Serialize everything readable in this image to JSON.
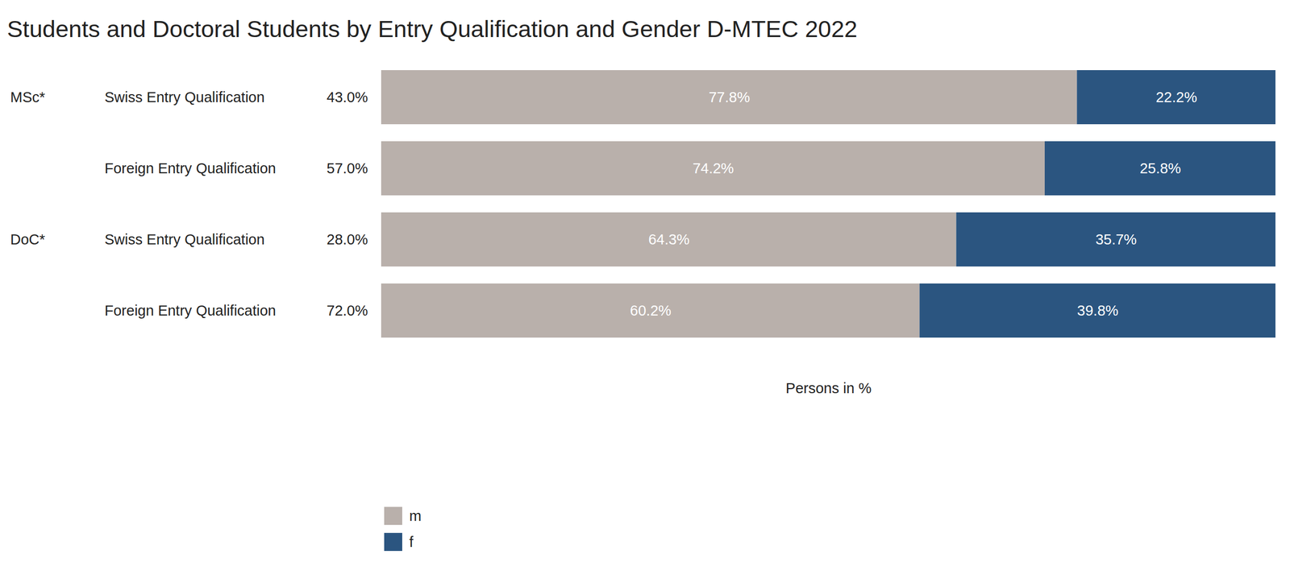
{
  "chart_data": {
    "type": "bar",
    "title": "Students and Doctoral Students by Entry Qualification and Gender D-MTEC 2022",
    "orientation": "horizontal",
    "stacked": true,
    "data_labels": true,
    "tick_labels": false,
    "legend": "bottom-left",
    "x_label": "Persons in %",
    "categories": [
      "Swiss Entry Qualification",
      "Foreign Entry Qualification",
      "Swiss Entry Qualification",
      "Foreign Entry Qualification"
    ],
    "groups": [
      "MSc*",
      null,
      "DoC*",
      null
    ],
    "shares": [
      43.0,
      57.0,
      28.0,
      72.0
    ],
    "share_labels": [
      "43.0%",
      "57.0%",
      "28.0%",
      "72.0%"
    ],
    "xlim": [
      0,
      100
    ],
    "series": [
      {
        "name": "m",
        "color": "#b9b0ab",
        "values": [
          77.8,
          74.2,
          64.3,
          60.2
        ],
        "value_labels": [
          "77.8%",
          "74.2%",
          "64.3%",
          "60.2%"
        ]
      },
      {
        "name": "f",
        "color": "#2b5580",
        "values": [
          22.2,
          25.8,
          35.7,
          39.8
        ],
        "value_labels": [
          "22.2%",
          "25.8%",
          "35.7%",
          "39.8%"
        ]
      }
    ]
  }
}
